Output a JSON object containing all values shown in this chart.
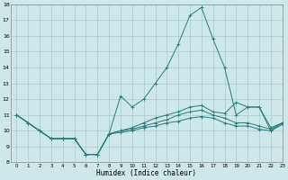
{
  "xlabel": "Humidex (Indice chaleur)",
  "background_color": "#cce8e8",
  "grid_color": "#aacccc",
  "line_color": "#2d7a7a",
  "x_values": [
    0,
    1,
    2,
    3,
    4,
    5,
    6,
    7,
    8,
    9,
    10,
    11,
    12,
    13,
    14,
    15,
    16,
    17,
    18,
    19,
    20,
    21,
    22,
    23
  ],
  "series": [
    [
      11.0,
      10.5,
      10.0,
      9.5,
      9.5,
      9.5,
      8.5,
      8.5,
      9.8,
      12.2,
      11.5,
      12.0,
      13.0,
      14.0,
      15.5,
      17.3,
      17.8,
      15.8,
      14.0,
      11.0,
      11.5,
      11.5,
      10.0,
      10.5
    ],
    [
      11.0,
      10.5,
      10.0,
      9.5,
      9.5,
      9.5,
      8.5,
      8.5,
      9.8,
      10.0,
      10.2,
      10.5,
      10.8,
      11.0,
      11.2,
      11.5,
      11.6,
      11.2,
      11.1,
      11.8,
      11.5,
      11.5,
      10.2,
      10.5
    ],
    [
      11.0,
      10.5,
      10.0,
      9.5,
      9.5,
      9.5,
      8.5,
      8.5,
      9.8,
      10.0,
      10.1,
      10.3,
      10.5,
      10.7,
      11.0,
      11.2,
      11.3,
      11.0,
      10.8,
      10.5,
      10.5,
      10.3,
      10.1,
      10.5
    ],
    [
      11.0,
      10.5,
      10.0,
      9.5,
      9.5,
      9.5,
      8.5,
      8.5,
      9.8,
      9.9,
      10.0,
      10.2,
      10.3,
      10.5,
      10.6,
      10.8,
      10.9,
      10.8,
      10.5,
      10.3,
      10.3,
      10.1,
      10.0,
      10.4
    ]
  ],
  "ylim": [
    8,
    18
  ],
  "xlim": [
    -0.5,
    23
  ],
  "yticks": [
    8,
    9,
    10,
    11,
    12,
    13,
    14,
    15,
    16,
    17,
    18
  ],
  "xticks": [
    0,
    1,
    2,
    3,
    4,
    5,
    6,
    7,
    8,
    9,
    10,
    11,
    12,
    13,
    14,
    15,
    16,
    17,
    18,
    19,
    20,
    21,
    22,
    23
  ]
}
